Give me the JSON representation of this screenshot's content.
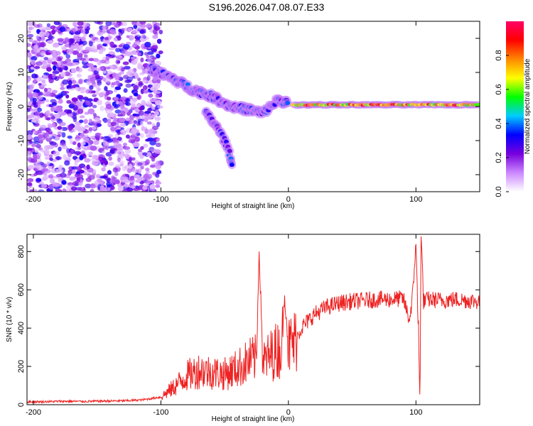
{
  "title": "S196.2026.047.08.07.E33",
  "chart_data": [
    {
      "type": "heatmap",
      "name": "spectrogram",
      "title": "S196.2026.047.08.07.E33",
      "xlabel": "Height of straight line (km)",
      "ylabel": "Frequency (Hz)",
      "xlim": [
        -205,
        150
      ],
      "ylim": [
        -25,
        25
      ],
      "xticks": [
        -200,
        -100,
        0,
        100
      ],
      "yticks": [
        -20,
        -10,
        0,
        10,
        20
      ],
      "colorbar": {
        "label": "Normalized spectral amplitude",
        "range": [
          0,
          1
        ],
        "ticks": [
          "0.0",
          "0.2",
          "0.4",
          "0.6",
          "0.8"
        ],
        "colors": [
          "#ffffff",
          "#cc88ff",
          "#7700dd",
          "#0000ff",
          "#00ccff",
          "#00ff00",
          "#ffff00",
          "#ff8800",
          "#ff0000",
          "#ff0066"
        ]
      },
      "regions": [
        {
          "desc": "scattered noise",
          "x_range": [
            -205,
            -100
          ],
          "f_range": [
            -25,
            25
          ],
          "amplitude": 0.15
        },
        {
          "desc": "descending dispersive branch",
          "points": [
            [
              -108,
              11
            ],
            [
              -90,
              8
            ],
            [
              -75,
              5
            ],
            [
              -60,
              3
            ],
            [
              -45,
              0
            ],
            [
              -30,
              -1
            ],
            [
              -20,
              -2
            ],
            [
              -8,
              2
            ],
            [
              0,
              1
            ]
          ],
          "amplitude": 0.3
        },
        {
          "desc": "secondary branch",
          "points": [
            [
              -65,
              -2
            ],
            [
              -58,
              -5
            ],
            [
              -50,
              -10
            ],
            [
              -46,
              -14
            ],
            [
              -44,
              -18
            ]
          ],
          "amplitude": 0.15
        },
        {
          "desc": "steady tone",
          "points": [
            [
              5,
              0.5
            ],
            [
              150,
              0.5
            ]
          ],
          "amplitude": 0.9
        }
      ]
    },
    {
      "type": "line",
      "name": "snr",
      "xlabel": "Height of straight line (km)",
      "ylabel": "SNR (10 * v/v)",
      "xlim": [
        -205,
        150
      ],
      "ylim": [
        0,
        890
      ],
      "xticks": [
        -200,
        -100,
        0,
        100
      ],
      "yticks": [
        0,
        200,
        400,
        600,
        800
      ],
      "series": [
        {
          "name": "SNR",
          "color": "#ee2222",
          "x": [
            -205,
            -190,
            -175,
            -160,
            -145,
            -130,
            -115,
            -100,
            -90,
            -80,
            -70,
            -60,
            -50,
            -40,
            -30,
            -25,
            -23,
            -20,
            -10,
            -5,
            -3,
            0,
            5,
            10,
            20,
            30,
            40,
            50,
            60,
            70,
            80,
            90,
            95,
            98,
            100,
            103,
            104,
            106,
            110,
            120,
            130,
            140,
            150
          ],
          "values": [
            15,
            16,
            18,
            17,
            19,
            20,
            25,
            40,
            90,
            150,
            180,
            170,
            160,
            190,
            230,
            240,
            815,
            220,
            280,
            300,
            585,
            300,
            330,
            400,
            470,
            510,
            530,
            540,
            545,
            550,
            550,
            555,
            440,
            610,
            870,
            50,
            890,
            540,
            550,
            545,
            550,
            545,
            540
          ]
        }
      ]
    }
  ]
}
